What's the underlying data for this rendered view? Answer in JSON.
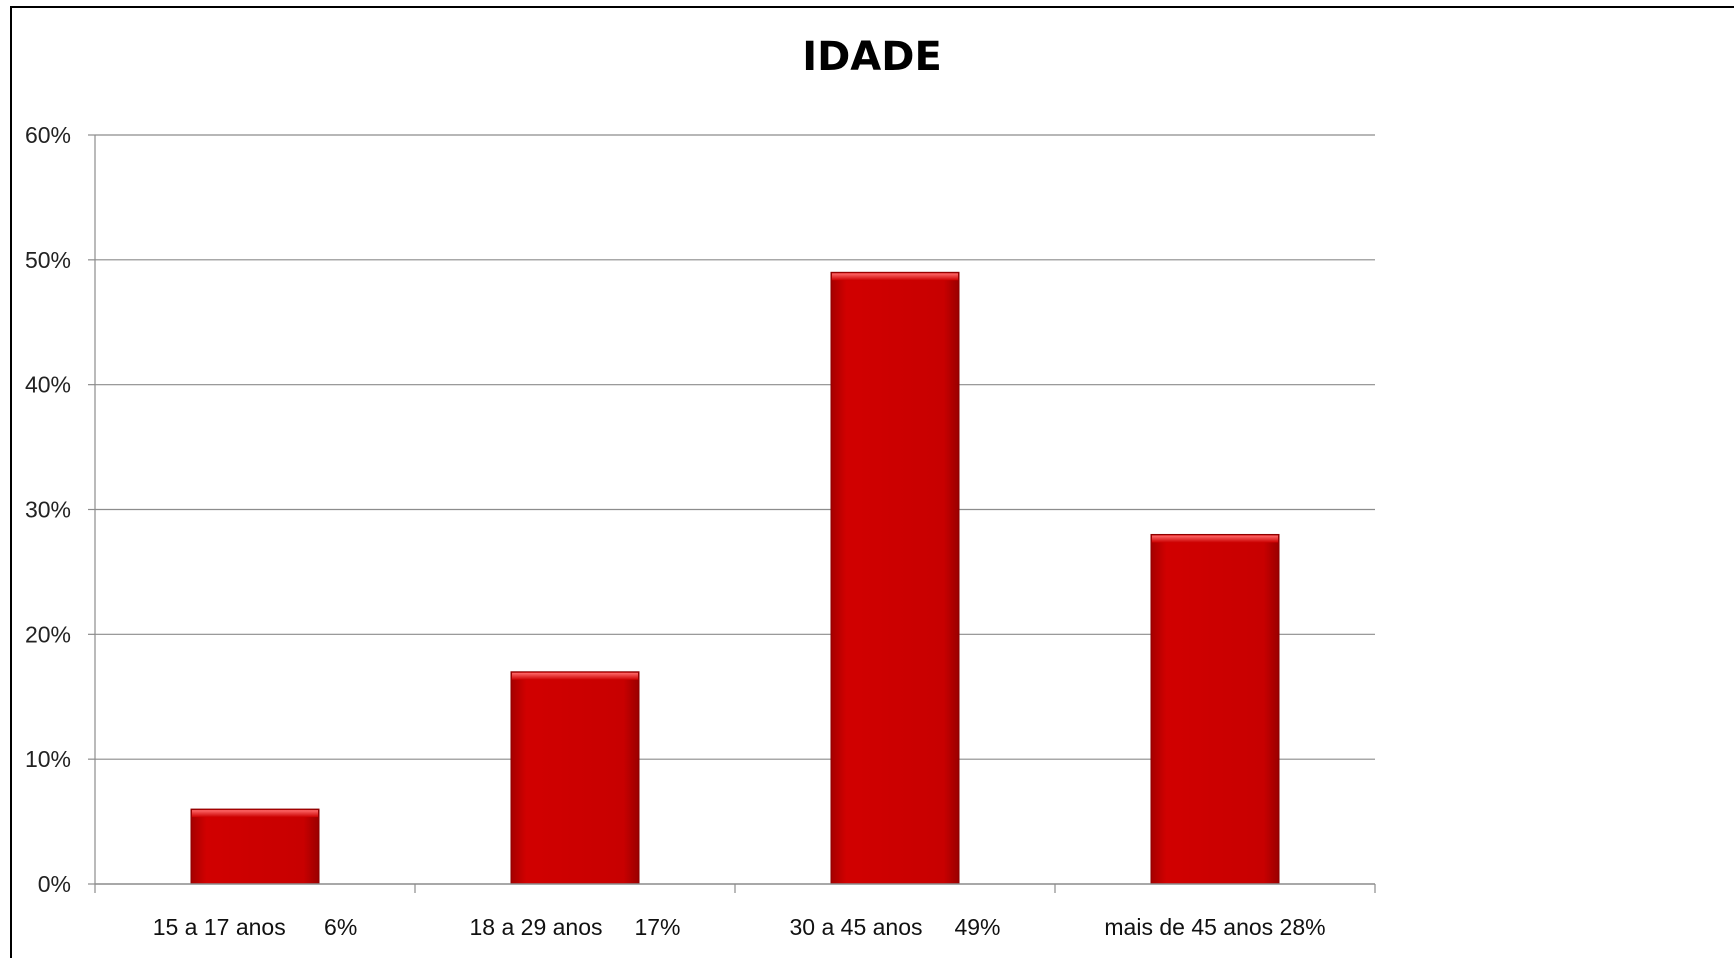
{
  "chart_data": {
    "type": "bar",
    "title": "IDADE",
    "xlabel": "",
    "ylabel": "",
    "categories": [
      "15 a 17 anos      6%",
      "18 a 29 anos     17%",
      "30 a 45 anos     49%",
      "mais de 45 anos 28%"
    ],
    "values": [
      6,
      17,
      49,
      28
    ],
    "ylim": [
      0,
      60
    ],
    "yticks": [
      0,
      10,
      20,
      30,
      40,
      50,
      60
    ],
    "ytick_labels": [
      "0%",
      "10%",
      "20%",
      "30%",
      "40%",
      "50%",
      "60%"
    ],
    "grid": true,
    "legend": "none",
    "colors": {
      "bar": "#cc0000",
      "bar_edge": "#8b0000",
      "grid": "#8c8c8c",
      "axis": "#8c8c8c"
    }
  }
}
